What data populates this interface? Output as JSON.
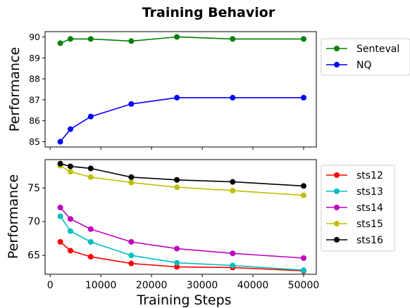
{
  "figure": {
    "title": "Training Behavior"
  },
  "chart_data": [
    {
      "type": "line",
      "panel": "top",
      "ylabel": "Performance",
      "xlabel": "",
      "xlim": [
        -1000,
        52500
      ],
      "ylim": [
        84.75,
        90.25
      ],
      "yticks": [
        85,
        86,
        87,
        88,
        89,
        90
      ],
      "xticks": [
        0,
        10000,
        20000,
        30000,
        40000,
        50000
      ],
      "show_xtick_labels": false,
      "legend": "outside-right-top",
      "x": [
        2000,
        4000,
        8000,
        16000,
        25000,
        36000,
        50000
      ],
      "series": [
        {
          "name": "Senteval",
          "color": "#008000",
          "values": [
            89.7,
            89.9,
            89.9,
            89.8,
            90.0,
            89.9,
            89.9
          ]
        },
        {
          "name": "NQ",
          "color": "#0000ff",
          "values": [
            85.0,
            85.6,
            86.2,
            86.8,
            87.1,
            87.1,
            87.1
          ]
        }
      ]
    },
    {
      "type": "line",
      "panel": "bottom",
      "ylabel": "Performance",
      "xlabel": "Training Steps",
      "xlim": [
        -1000,
        52500
      ],
      "ylim": [
        62.2,
        79.2
      ],
      "yticks": [
        65,
        70,
        75
      ],
      "xticks": [
        0,
        10000,
        20000,
        30000,
        40000,
        50000
      ],
      "show_xtick_labels": true,
      "legend": "outside-right-top",
      "x": [
        2000,
        4000,
        8000,
        16000,
        25000,
        36000,
        50000
      ],
      "series": [
        {
          "name": "sts12",
          "color": "#ff0000",
          "values": [
            67.0,
            65.7,
            64.8,
            63.8,
            63.3,
            63.2,
            62.7
          ]
        },
        {
          "name": "sts13",
          "color": "#00bfbf",
          "values": [
            70.8,
            68.6,
            67.0,
            65.0,
            63.9,
            63.5,
            62.8
          ]
        },
        {
          "name": "sts14",
          "color": "#bf00bf",
          "values": [
            72.1,
            70.4,
            68.9,
            67.0,
            66.0,
            65.3,
            64.6
          ]
        },
        {
          "name": "sts15",
          "color": "#bfbf00",
          "values": [
            78.3,
            77.4,
            76.6,
            75.8,
            75.1,
            74.6,
            73.9
          ]
        },
        {
          "name": "sts16",
          "color": "#000000",
          "values": [
            78.6,
            78.2,
            77.9,
            76.6,
            76.2,
            75.9,
            75.3
          ]
        }
      ]
    }
  ]
}
